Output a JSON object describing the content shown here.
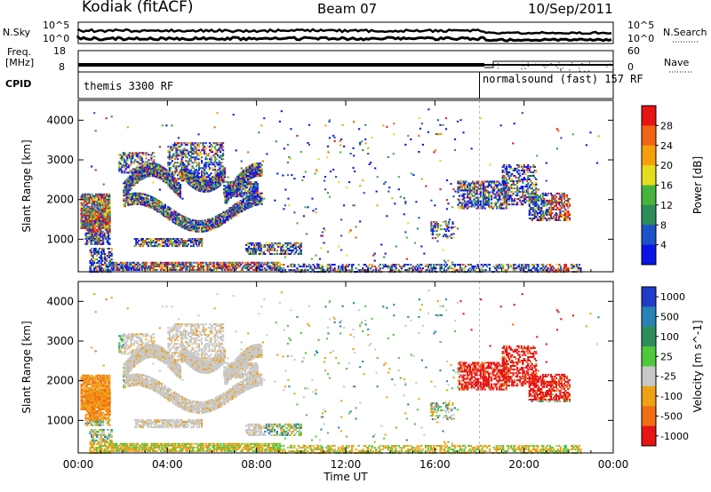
{
  "header": {
    "station": "Kodiak (fitACF)",
    "beam": "Beam 07",
    "date": "10/Sep/2011"
  },
  "top_panels": {
    "nsky_label": "N.Sky",
    "nsearch_label": "N.Search",
    "nsky_ticks": [
      "10^5",
      "10^0"
    ],
    "nsearch_ticks": [
      "10^5",
      "10^0"
    ],
    "freq_label_line1": "Freq.",
    "freq_label_line2": "[MHz]",
    "freq_ticks": [
      "18",
      "8"
    ],
    "nave_label": "Nave",
    "nave_ticks": [
      "60",
      "0"
    ],
    "cpid_label": "CPID",
    "cpid_segments": [
      {
        "text": "themis 3300 RF",
        "start_hour": 0
      },
      {
        "text": "normalsound (fast) 157 RF",
        "start_hour": 18
      }
    ]
  },
  "chart_data": [
    {
      "type": "heatmap",
      "title": "",
      "xlabel": "",
      "ylabel": "Slant Range [km]",
      "xlim": [
        0,
        24
      ],
      "ylim": [
        180,
        4500
      ],
      "x_ticks": [
        "00:00",
        "04:00",
        "08:00",
        "12:00",
        "16:00",
        "20:00",
        "00:00"
      ],
      "y_ticks": [
        1000,
        2000,
        3000,
        4000
      ],
      "colorbar": {
        "label": "Power [dB]",
        "ticks": [
          "4",
          "8",
          "12",
          "16",
          "20",
          "24",
          "28"
        ],
        "colors": [
          "#0a14e6",
          "#1e52c8",
          "#2d8c5a",
          "#46b43c",
          "#e6dc1e",
          "#f5a00a",
          "#f06414",
          "#e61414"
        ]
      }
    },
    {
      "type": "heatmap",
      "title": "",
      "xlabel": "Time UT",
      "ylabel": "Slant Range [km]",
      "xlim": [
        0,
        24
      ],
      "ylim": [
        180,
        4500
      ],
      "x_ticks": [
        "00:00",
        "04:00",
        "08:00",
        "12:00",
        "16:00",
        "20:00",
        "00:00"
      ],
      "y_ticks": [
        1000,
        2000,
        3000,
        4000
      ],
      "colorbar": {
        "label": "Velocity [m s^-1]",
        "ticks": [
          "1000",
          "500",
          "100",
          "25",
          "-25",
          "-100",
          "-500",
          "-1000"
        ],
        "colors": [
          "#1e3cc8",
          "#2882b4",
          "#2d8c5a",
          "#50c83c",
          "#c8c8c8",
          "#f0a014",
          "#f06e14",
          "#e61414"
        ]
      }
    }
  ]
}
